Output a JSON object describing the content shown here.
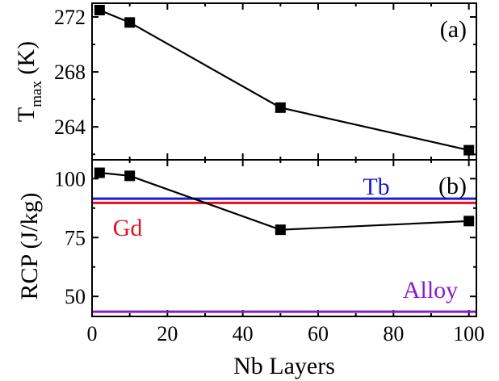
{
  "chart_data": [
    {
      "type": "line",
      "panel_label": "(a)",
      "ylabel_main": "T",
      "ylabel_sub": "max",
      "ylabel_unit": "(K)",
      "x": [
        2,
        10,
        50,
        100
      ],
      "series": [
        {
          "values": [
            272.5,
            271.6,
            265.4,
            262.3
          ],
          "color": "#000000",
          "marker": "square"
        }
      ],
      "ylim": [
        261.6,
        273.0
      ],
      "yticks": [
        264,
        268,
        272
      ],
      "xlim": [
        0,
        102
      ]
    },
    {
      "type": "line",
      "panel_label": "(b)",
      "ylabel": "RCP (J/kg)",
      "xlabel": "Nb Layers",
      "x": [
        2,
        10,
        50,
        100
      ],
      "series": [
        {
          "values": [
            102.5,
            101.2,
            78.3,
            82.0
          ],
          "color": "#000000",
          "marker": "square"
        }
      ],
      "reference_lines": [
        {
          "label": "Tb",
          "value": 91.5,
          "color": "#1a1adb"
        },
        {
          "label": "Gd",
          "value": 89.7,
          "color": "#e0141e"
        },
        {
          "label": "Alloy",
          "value": 43.5,
          "color": "#8a1ad0"
        }
      ],
      "ylim": [
        41.5,
        108.0
      ],
      "yticks": [
        50,
        75,
        100
      ],
      "xticks": [
        0,
        20,
        40,
        60,
        80,
        100
      ],
      "xlim": [
        0,
        102
      ]
    }
  ]
}
